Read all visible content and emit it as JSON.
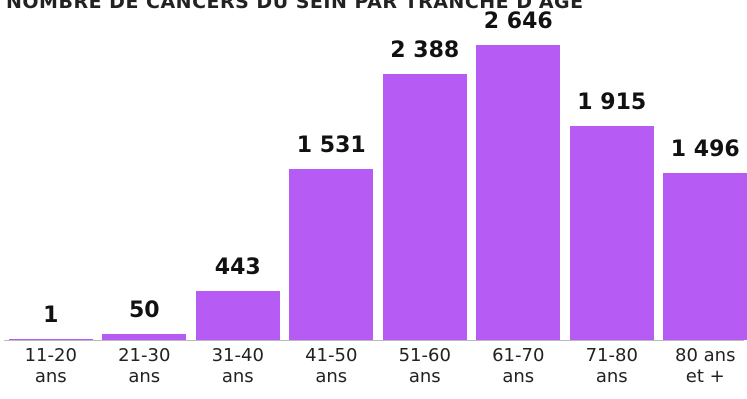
{
  "chart_data": {
    "type": "bar",
    "title": "NOMBRE DE CANCERS DU SEIN PAR TRANCHE D'AGE",
    "categories": [
      "11-20 ans",
      "21-30 ans",
      "31-40 ans",
      "41-50 ans",
      "51-60 ans",
      "61-70 ans",
      "71-80 ans",
      "80 ans et +"
    ],
    "values": [
      1,
      50,
      443,
      1531,
      2388,
      2646,
      1915,
      1496
    ],
    "value_labels": [
      "1",
      "50",
      "443",
      "1 531",
      "2 388",
      "2 646",
      "1 915",
      "1 496"
    ],
    "color": "#b65cf5"
  }
}
